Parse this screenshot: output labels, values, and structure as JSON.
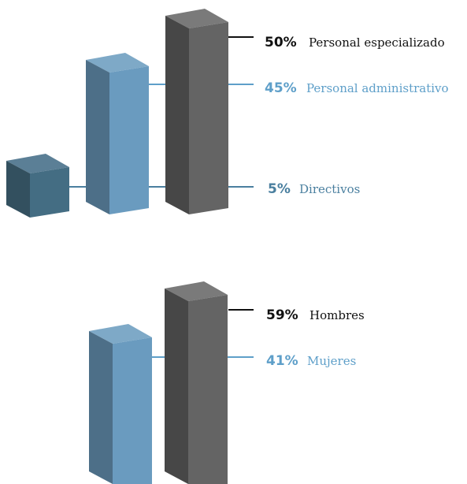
{
  "chart_data": [
    {
      "type": "bar",
      "title": "",
      "series": [
        {
          "name": "Directivos",
          "value": 5,
          "label_pct": "5%",
          "color": "#4a7088"
        },
        {
          "name": "Personal administrativo",
          "value": 45,
          "label_pct": "45%",
          "color": "#6a9bbf"
        },
        {
          "name": "Personal especializado",
          "value": 50,
          "label_pct": "50%",
          "color": "#646464"
        }
      ],
      "label_colors": [
        "#4a7f9f",
        "#5e9fc9",
        "#111111"
      ],
      "line_colors": [
        "#4a7f9f",
        "#5e9fc9",
        "#111111"
      ]
    },
    {
      "type": "bar",
      "title": "",
      "series": [
        {
          "name": "Mujeres",
          "value": 41,
          "label_pct": "41%",
          "color": "#6a9bbf"
        },
        {
          "name": "Hombres",
          "value": 59,
          "label_pct": "59%",
          "color": "#646464"
        }
      ],
      "label_colors": [
        "#5e9fc9",
        "#111111"
      ],
      "line_colors": [
        "#5e9fc9",
        "#111111"
      ]
    }
  ]
}
